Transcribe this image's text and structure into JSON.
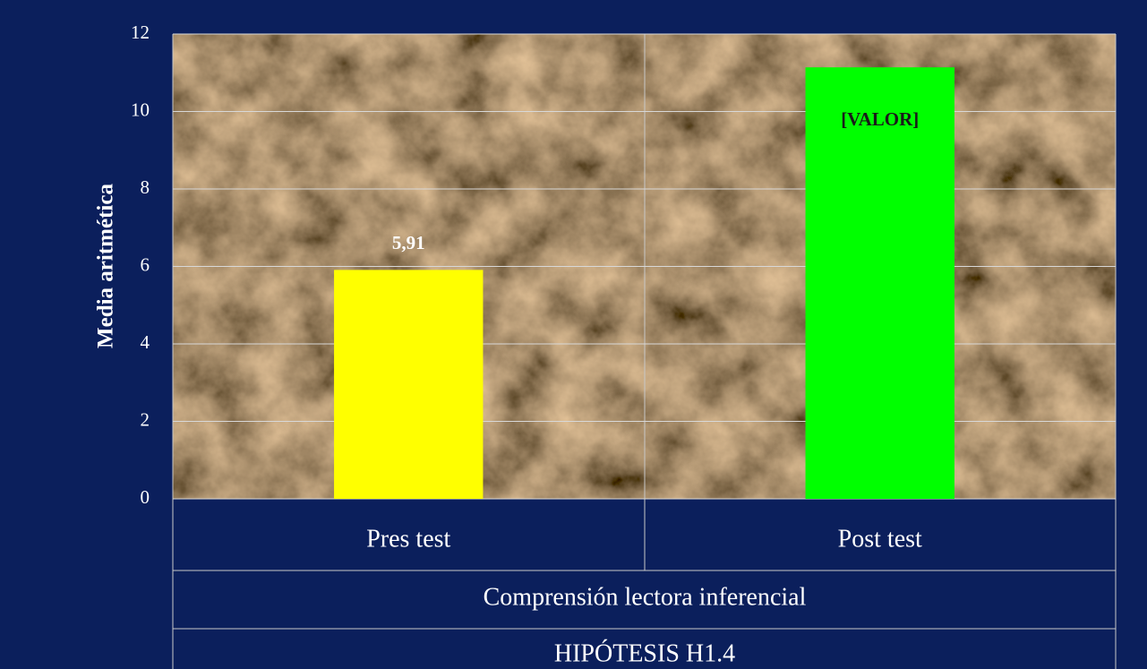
{
  "chart_data": {
    "type": "bar",
    "categories": [
      "Pres test",
      "Post test"
    ],
    "values": [
      5.91,
      11.14
    ],
    "value_labels": [
      "5,91",
      "[VALOR]"
    ],
    "colors": [
      "#ffff00",
      "#00ff00"
    ],
    "ylabel": "Media aritmética",
    "x_group": "Comprensión lectora inferencial",
    "xlabel": "HIPÓTESIS H1.4",
    "ylim": [
      0,
      12
    ],
    "yticks": [
      0,
      2,
      4,
      6,
      8,
      10,
      12
    ],
    "grid": true
  }
}
